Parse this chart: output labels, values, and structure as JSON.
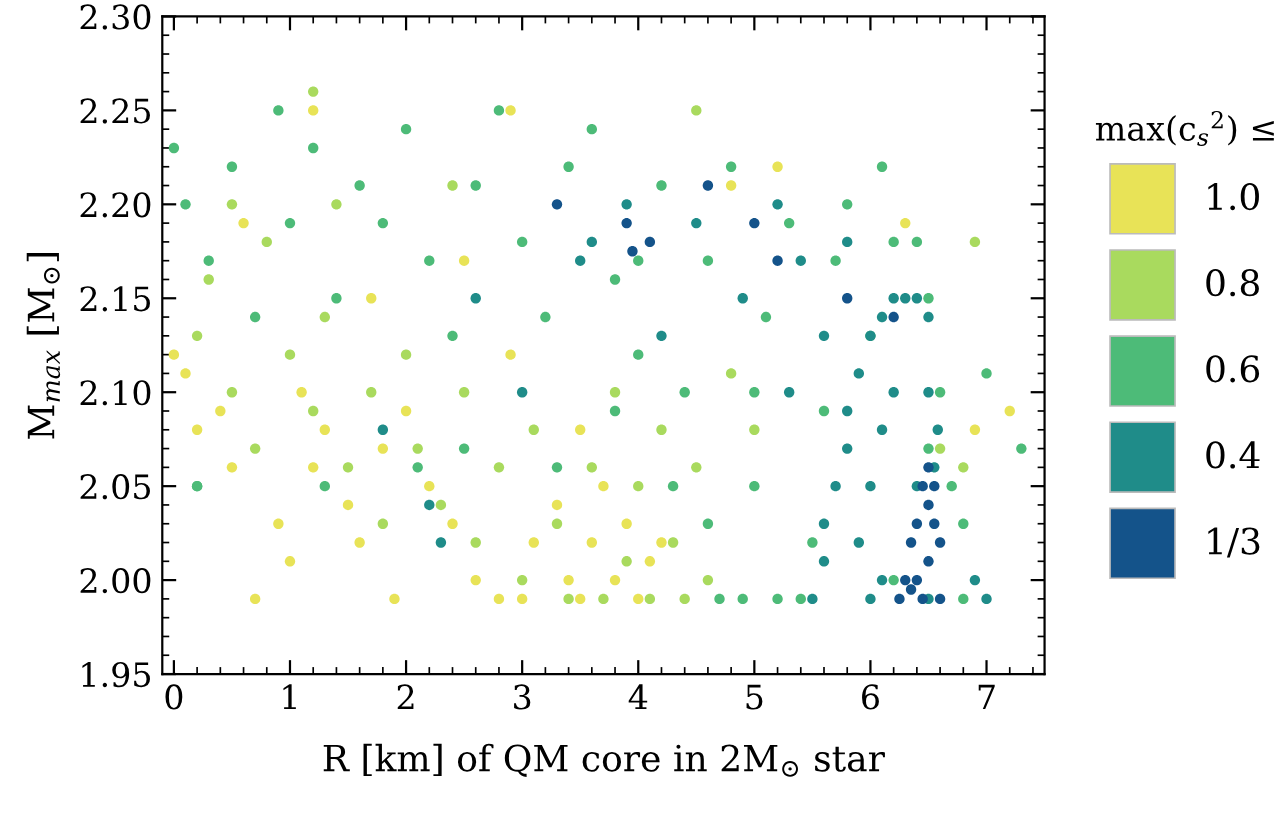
{
  "chart_data": {
    "type": "scatter",
    "xlabel": "R [km] of QM core in 2M$_{⊙}$ star",
    "ylabel": "M$_{max}$ [M$_{⊙}$]",
    "legend_title": "max(c$_{s}$$^{2}$) ≤",
    "xlim": [
      -0.1,
      7.5
    ],
    "xticks": [
      0,
      1,
      2,
      3,
      4,
      5,
      6,
      7
    ],
    "ylim": [
      1.95,
      2.3
    ],
    "yticks": [
      {
        "value": 1.95,
        "label": "1.95"
      },
      {
        "value": 2.0,
        "label": "2.00"
      },
      {
        "value": 2.05,
        "label": "2.05"
      },
      {
        "value": 2.1,
        "label": "2.10"
      },
      {
        "value": 2.15,
        "label": "2.15"
      },
      {
        "value": 2.2,
        "label": "2.20"
      },
      {
        "value": 2.25,
        "label": "2.25"
      },
      {
        "value": 2.3,
        "label": "2.30"
      }
    ],
    "grid": false,
    "legend": "right",
    "marker": "circle",
    "series": [
      {
        "name": "1.0",
        "color": "#e8e357",
        "x": [
          0.0,
          0.1,
          0.2,
          0.4,
          0.5,
          0.7,
          0.9,
          1.0,
          1.1,
          1.2,
          1.3,
          1.5,
          1.6,
          1.8,
          1.9,
          2.0,
          2.2,
          2.4,
          2.6,
          2.8,
          3.0,
          3.1,
          3.3,
          3.4,
          3.5,
          3.6,
          3.7,
          3.8,
          3.9,
          4.0,
          4.1,
          4.2,
          3.5,
          2.9,
          1.7,
          1.2,
          2.5,
          4.8,
          5.2,
          6.3,
          6.9,
          7.2,
          0.6,
          2.9
        ],
        "values": [
          2.12,
          2.11,
          2.08,
          2.09,
          2.06,
          1.99,
          2.03,
          2.01,
          2.1,
          2.06,
          2.08,
          2.04,
          2.02,
          2.07,
          1.99,
          2.09,
          2.05,
          2.03,
          2.0,
          1.99,
          1.99,
          2.02,
          2.04,
          2.0,
          1.99,
          2.02,
          2.05,
          2.0,
          2.03,
          1.99,
          2.01,
          2.02,
          2.08,
          2.12,
          2.15,
          2.25,
          2.17,
          2.21,
          2.22,
          2.19,
          2.08,
          2.09,
          2.19,
          2.25
        ]
      },
      {
        "name": "0.8",
        "color": "#a9da5e",
        "x": [
          0.2,
          0.3,
          0.5,
          0.7,
          0.8,
          1.0,
          1.2,
          1.3,
          1.5,
          1.7,
          1.8,
          2.0,
          2.1,
          2.3,
          2.5,
          2.6,
          2.8,
          3.0,
          3.1,
          3.3,
          3.4,
          3.6,
          3.7,
          3.8,
          3.9,
          4.0,
          4.1,
          4.2,
          4.3,
          4.4,
          4.5,
          4.6,
          4.8,
          5.0,
          1.2,
          2.4,
          4.5,
          6.6,
          6.8,
          6.9,
          1.4,
          0.5
        ],
        "values": [
          2.13,
          2.16,
          2.1,
          2.07,
          2.18,
          2.12,
          2.09,
          2.14,
          2.06,
          2.1,
          2.03,
          2.12,
          2.07,
          2.04,
          2.1,
          2.02,
          2.06,
          2.0,
          2.08,
          2.03,
          1.99,
          2.06,
          1.99,
          2.1,
          2.01,
          2.05,
          1.99,
          2.08,
          2.02,
          1.99,
          2.06,
          2.0,
          2.11,
          2.08,
          2.26,
          2.21,
          2.25,
          2.07,
          2.06,
          2.18,
          2.2,
          2.2
        ]
      },
      {
        "name": "0.6",
        "color": "#4dbb78",
        "x": [
          0.0,
          0.1,
          0.2,
          0.3,
          0.5,
          0.7,
          0.9,
          1.0,
          1.2,
          1.4,
          1.6,
          1.8,
          2.0,
          2.2,
          2.4,
          2.6,
          2.8,
          3.0,
          3.2,
          3.4,
          3.6,
          3.8,
          4.0,
          4.2,
          4.4,
          4.6,
          4.8,
          5.0,
          5.1,
          5.3,
          5.5,
          5.6,
          5.8,
          6.0,
          6.2,
          6.4,
          6.5,
          6.6,
          6.7,
          6.8,
          7.0,
          7.3,
          6.8,
          5.7,
          4.7,
          4.9,
          5.2,
          5.4,
          4.6,
          2.1,
          1.3,
          0.2,
          3.3,
          3.8,
          4.3,
          2.5,
          5.0,
          4.0,
          6.1,
          6.5,
          6.2
        ],
        "values": [
          2.23,
          2.2,
          2.05,
          2.17,
          2.22,
          2.14,
          2.25,
          2.19,
          2.23,
          2.15,
          2.21,
          2.19,
          2.24,
          2.17,
          2.13,
          2.21,
          2.25,
          2.18,
          2.14,
          2.22,
          2.24,
          2.16,
          2.12,
          2.21,
          2.1,
          2.17,
          2.22,
          2.05,
          2.14,
          2.19,
          2.02,
          2.09,
          2.2,
          2.13,
          2.18,
          2.18,
          2.15,
          2.1,
          2.05,
          2.03,
          2.11,
          2.07,
          1.99,
          2.17,
          1.99,
          1.99,
          1.99,
          1.99,
          2.03,
          2.06,
          2.05,
          2.05,
          2.06,
          2.09,
          2.05,
          2.07,
          2.1,
          2.17,
          2.22,
          2.07,
          2.0
        ]
      },
      {
        "name": "0.4",
        "color": "#1f8c89",
        "x": [
          5.5,
          5.6,
          5.6,
          5.7,
          5.8,
          5.8,
          5.9,
          6.0,
          6.1,
          6.2,
          6.3,
          6.4,
          6.5,
          6.5,
          6.55,
          6.58,
          6.5,
          6.0,
          6.0,
          6.2,
          6.1,
          6.1,
          6.4,
          5.9,
          5.3,
          5.6,
          5.4,
          5.8,
          4.9,
          5.2,
          4.5,
          3.9,
          3.5,
          2.6,
          3.0,
          4.2,
          1.8,
          2.2,
          6.9,
          7.0,
          2.3,
          3.6
        ],
        "values": [
          1.99,
          2.01,
          2.03,
          2.05,
          2.07,
          2.09,
          2.11,
          2.13,
          2.14,
          2.15,
          2.15,
          2.15,
          2.14,
          2.1,
          2.06,
          2.08,
          1.99,
          1.99,
          2.05,
          2.1,
          2.0,
          2.08,
          2.05,
          2.02,
          2.1,
          2.13,
          2.17,
          2.18,
          2.15,
          2.2,
          2.19,
          2.2,
          2.17,
          2.15,
          2.1,
          2.13,
          2.08,
          2.04,
          2.0,
          1.99,
          2.02,
          2.18
        ]
      },
      {
        "name": "1/3",
        "color": "#14538a",
        "x": [
          6.25,
          6.3,
          6.35,
          6.4,
          6.45,
          6.5,
          6.55,
          6.6,
          6.6,
          6.45,
          6.4,
          6.5,
          6.55,
          6.35,
          6.5,
          3.3,
          3.9,
          3.95,
          4.1,
          5.2,
          5.8,
          6.2,
          4.6,
          5.0
        ],
        "values": [
          1.99,
          2.0,
          2.02,
          2.03,
          2.05,
          2.06,
          2.05,
          2.02,
          1.99,
          1.99,
          2.0,
          2.01,
          2.03,
          1.995,
          2.04,
          2.2,
          2.19,
          2.175,
          2.18,
          2.17,
          2.15,
          2.14,
          2.21,
          2.19
        ]
      }
    ]
  }
}
